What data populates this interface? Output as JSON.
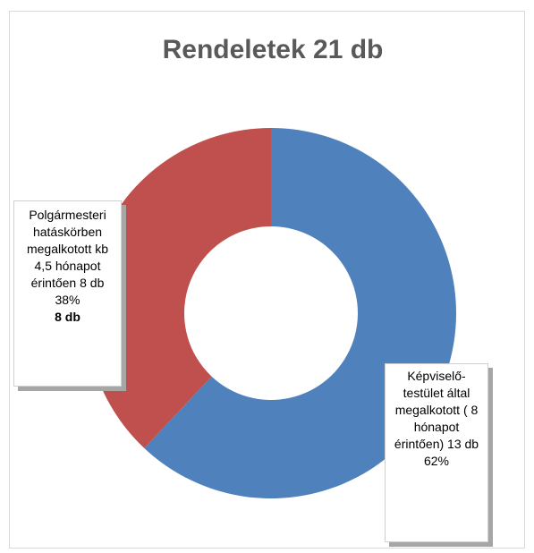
{
  "chart_data": {
    "type": "donut",
    "title": "Rendeletek 21 db",
    "categories": [
      "Képviselő-testület által megalkotott ( 8 hónapot érintően) 13 db",
      "Polgármesteri hatáskörben megalkotott kb 4,5 hónapot érintően 8 db"
    ],
    "values": [
      62,
      38
    ],
    "value_labels": [
      "62%",
      "38%"
    ],
    "colors": [
      "#4f81bd",
      "#c0504d"
    ],
    "annotations": [
      "8 db"
    ]
  }
}
